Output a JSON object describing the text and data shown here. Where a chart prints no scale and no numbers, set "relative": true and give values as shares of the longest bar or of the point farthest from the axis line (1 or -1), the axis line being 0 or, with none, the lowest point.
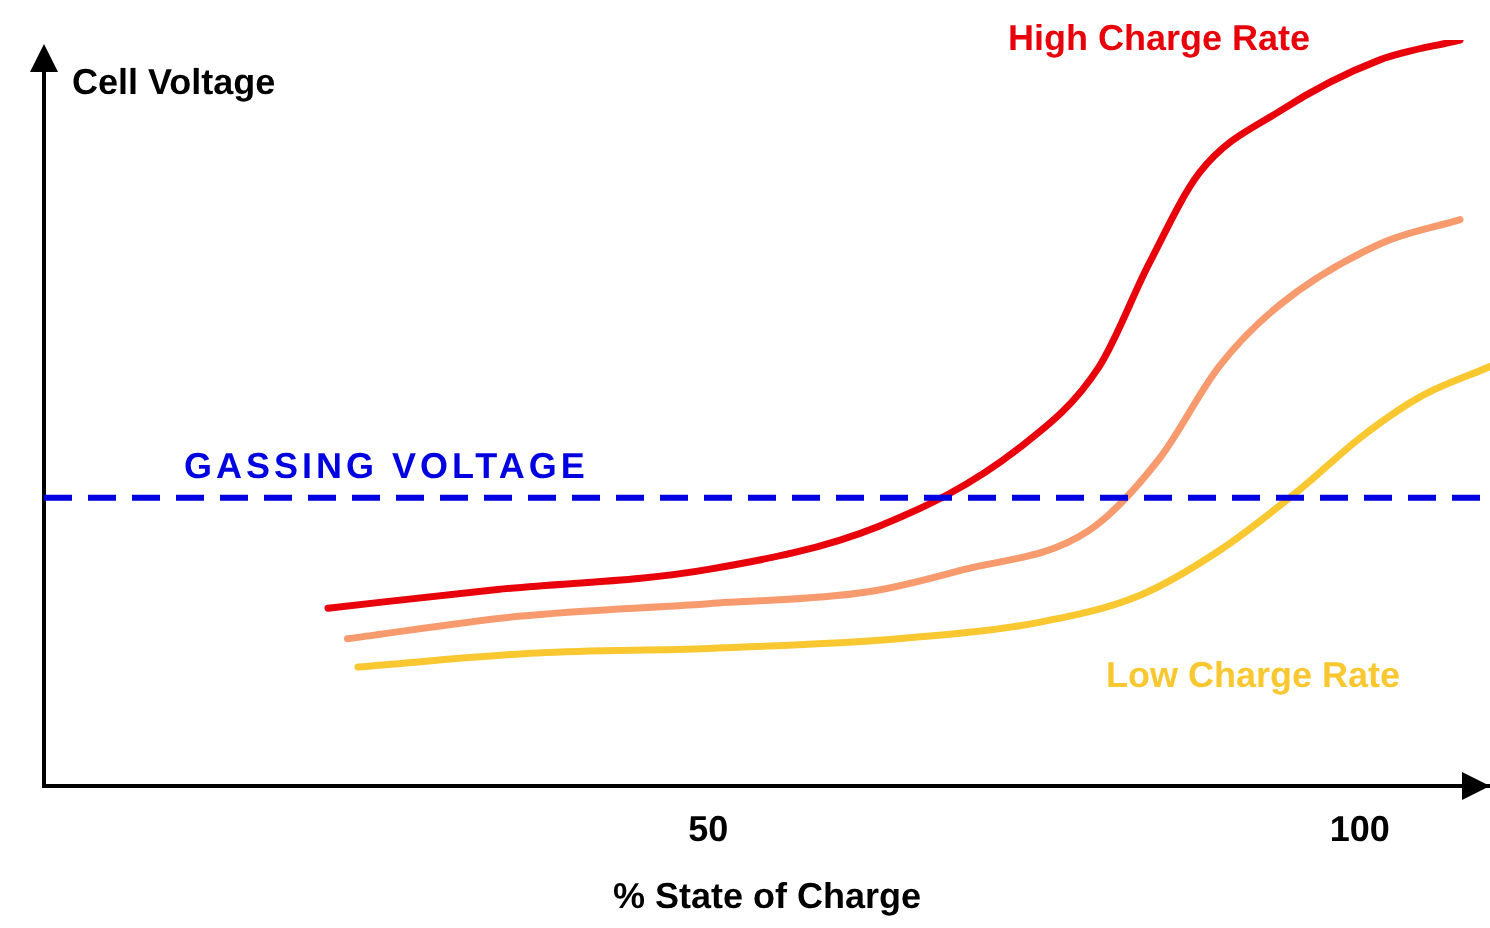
{
  "chart_data": {
    "type": "line",
    "relative": true,
    "xlabel": "% State of Charge",
    "ylabel": "Cell Voltage",
    "xlim": [
      -1,
      110
    ],
    "xticks": [
      50,
      100
    ],
    "grid": false,
    "legend": false,
    "marker": "none",
    "line_style": "solid",
    "series": [
      {
        "name": "High Charge Rate",
        "color": "#e8000a",
        "x": [
          20.8,
          33.8,
          50,
          63.1,
          73.8,
          80,
          83.8,
          87.7,
          93.8,
          101.5,
          107.7
        ],
        "values": [
          0.238,
          0.263,
          0.29,
          0.348,
          0.452,
          0.562,
          0.699,
          0.822,
          0.904,
          0.973,
          1
        ]
      },
      {
        "color": "#f79a6e",
        "x": [
          22.3,
          35.4,
          50,
          62.3,
          69.2,
          79.2,
          84.6,
          89.2,
          93.8,
          101.5,
          107.7
        ],
        "values": [
          0.197,
          0.227,
          0.244,
          0.26,
          0.288,
          0.342,
          0.438,
          0.562,
          0.644,
          0.726,
          0.759
        ]
      },
      {
        "name": "Low Charge Rate",
        "color": "#f9c830",
        "x": [
          23.1,
          36.9,
          50,
          64.6,
          75.4,
          83.1,
          89.2,
          95.4,
          100,
          104.6,
          110
        ],
        "values": [
          0.159,
          0.178,
          0.184,
          0.197,
          0.219,
          0.255,
          0.315,
          0.397,
          0.466,
          0.521,
          0.562
        ]
      }
    ],
    "ref_lines": [
      {
        "axis": "y",
        "value": 0.386,
        "label": "GASSING VOLTAGE",
        "color": "#0000e0",
        "line_style": "dashed"
      }
    ]
  }
}
